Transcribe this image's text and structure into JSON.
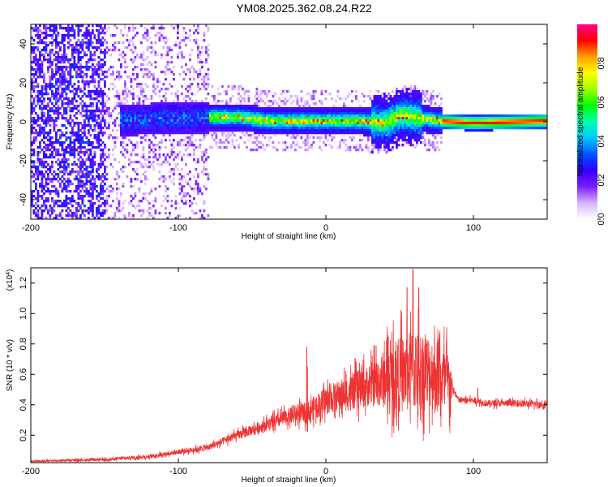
{
  "title": "YM08.2025.362.08.24.R22",
  "chart_data": [
    {
      "type": "heatmap",
      "xlabel": "Height of straight line (km)",
      "ylabel": "Frequency (Hz)",
      "xlim": [
        -200,
        150
      ],
      "ylim": [
        -50,
        50
      ],
      "xticks": [
        -200,
        -100,
        0,
        100
      ],
      "yticks": [
        -40,
        -20,
        0,
        20,
        40
      ],
      "colorbar": {
        "label": "Normalized spectral amplitude",
        "range": [
          0.0,
          1.0
        ],
        "ticks": [
          "0.0",
          "0.2",
          "0.4",
          "0.6",
          "0.8"
        ],
        "tick_values": [
          0.0,
          0.2,
          0.4,
          0.6,
          0.8
        ],
        "colors": [
          "#ffffff",
          "#d9b3ff",
          "#7a1fff",
          "#3300ff",
          "#0055ff",
          "#00c8ff",
          "#00ffb0",
          "#00ff00",
          "#a0ff00",
          "#ffff00",
          "#ffa000",
          "#ff0000",
          "#ff0088"
        ]
      },
      "ridge_km": [
        -200,
        -150,
        -120,
        -80,
        -60,
        -40,
        -20,
        0,
        20,
        40,
        50,
        60,
        75,
        100,
        150
      ],
      "ridge_hz": [
        0,
        1,
        2,
        3,
        3,
        1,
        1,
        1,
        1,
        0,
        4,
        3,
        1,
        0,
        1
      ]
    },
    {
      "type": "line",
      "xlabel": "Height of straight line (km)",
      "ylabel": "SNR (10 * v/v)",
      "yscale_label": "(x10",
      "yscale_exp": "4",
      "xlim": [
        -200,
        150
      ],
      "ylim": [
        0.02,
        1.3
      ],
      "xticks": [
        -200,
        -100,
        0,
        100
      ],
      "yticks": [
        0.2,
        0.4,
        0.6,
        0.8,
        1.0,
        1.2
      ],
      "ytick_labels": [
        "0.2",
        "0.4",
        "0.6",
        "0.8",
        "1.0",
        "1.2"
      ],
      "color": "#ee3333",
      "envelope_x": [
        -200,
        -150,
        -120,
        -100,
        -80,
        -60,
        -40,
        -20,
        -12,
        -10,
        0,
        20,
        40,
        55,
        60,
        70,
        78,
        85,
        90,
        100,
        103,
        110,
        130,
        150
      ],
      "envelope_y": [
        0.03,
        0.04,
        0.06,
        0.09,
        0.12,
        0.2,
        0.27,
        0.34,
        0.35,
        0.37,
        0.43,
        0.49,
        0.57,
        0.61,
        0.63,
        0.62,
        0.58,
        0.52,
        0.43,
        0.43,
        0.42,
        0.41,
        0.41,
        0.4
      ],
      "noise_amp_x": [
        -200,
        -120,
        -80,
        -40,
        -20,
        0,
        30,
        50,
        60,
        70,
        84,
        86,
        100,
        150
      ],
      "noise_amp_y": [
        0.005,
        0.012,
        0.02,
        0.04,
        0.06,
        0.09,
        0.14,
        0.25,
        0.28,
        0.25,
        0.22,
        0.02,
        0.02,
        0.025
      ],
      "spikes": [
        {
          "x": -13,
          "y": 0.78
        },
        {
          "x": -12.5,
          "y": 0.65
        },
        {
          "x": 59,
          "y": 1.29
        },
        {
          "x": 55,
          "y": 1.17
        },
        {
          "x": 63,
          "y": 1.17
        },
        {
          "x": 103,
          "y": 0.51
        }
      ]
    }
  ]
}
